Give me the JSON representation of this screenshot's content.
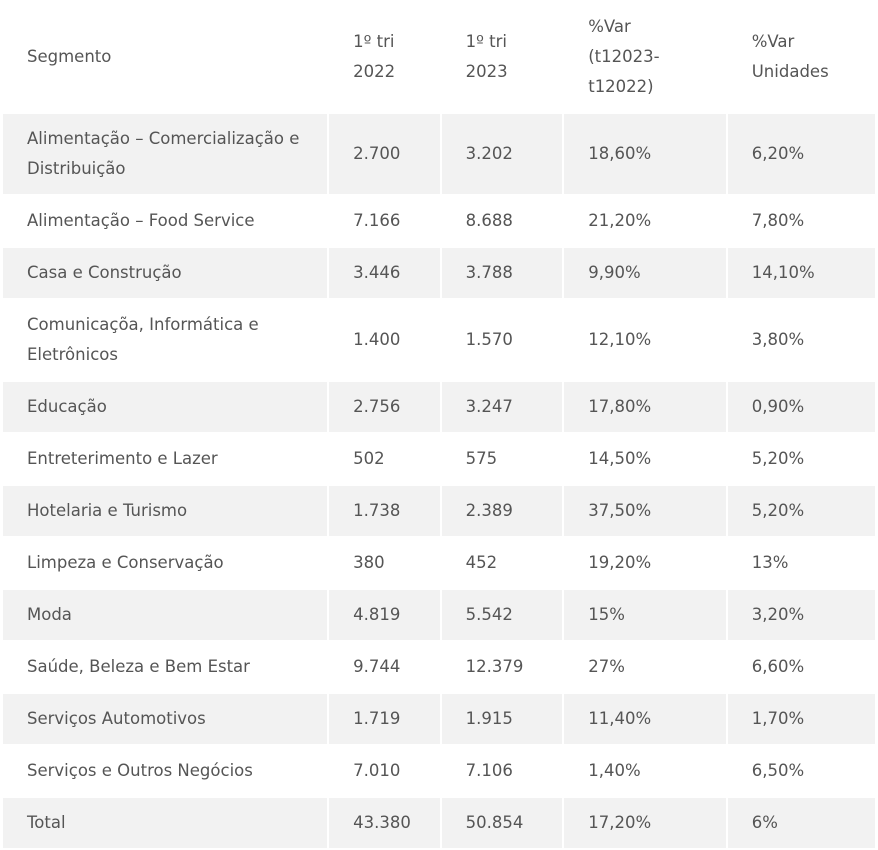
{
  "table": {
    "headers": [
      "Segmento",
      "1º tri 2022",
      "1º tri 2023",
      "%Var (t12023-t12022)",
      "%Var Unidades"
    ],
    "rows": [
      [
        "Alimentação – Comercialização e Distribuição",
        "2.700",
        "3.202",
        "18,60%",
        "6,20%"
      ],
      [
        "Alimentação – Food Service",
        "7.166",
        "8.688",
        "21,20%",
        "7,80%"
      ],
      [
        "Casa e Construção",
        "3.446",
        "3.788",
        "9,90%",
        "14,10%"
      ],
      [
        "Comunicaçõa, Informática e Eletrônicos",
        "1.400",
        "1.570",
        "12,10%",
        "3,80%"
      ],
      [
        "Educação",
        "2.756",
        "3.247",
        "17,80%",
        "0,90%"
      ],
      [
        "Entreterimento e Lazer",
        "502",
        "575",
        "14,50%",
        "5,20%"
      ],
      [
        "Hotelaria e Turismo",
        "1.738",
        "2.389",
        "37,50%",
        "5,20%"
      ],
      [
        "Limpeza e Conservação",
        "380",
        "452",
        "19,20%",
        "13%"
      ],
      [
        "Moda",
        "4.819",
        "5.542",
        "15%",
        "3,20%"
      ],
      [
        "Saúde, Beleza e Bem Estar",
        "9.744",
        "12.379",
        "27%",
        "6,60%"
      ],
      [
        "Serviços Automotivos",
        "1.719",
        "1.915",
        "11,40%",
        "1,70%"
      ],
      [
        "Serviços e Outros Negócios",
        "7.010",
        "7.106",
        "1,40%",
        "6,50%"
      ],
      [
        "Total",
        "43.380",
        "50.854",
        "17,20%",
        "6%"
      ]
    ]
  }
}
